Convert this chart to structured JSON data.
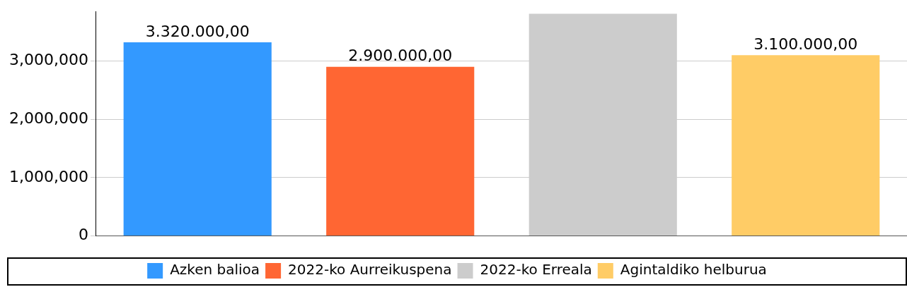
{
  "chart_data": {
    "type": "bar",
    "categories": [
      null
    ],
    "series": [
      {
        "name": "Azken balioa",
        "color": "#3399ff",
        "values": [
          3320000
        ],
        "value_labels": [
          "3.320.000,00"
        ]
      },
      {
        "name": "2022-ko Aurreikuspena",
        "color": "#ff6633",
        "values": [
          2900000
        ],
        "value_labels": [
          "2.900.000,00"
        ]
      },
      {
        "name": "2022-ko Erreala",
        "color": "#cccccc",
        "values": [
          3810000
        ],
        "value_labels": [
          null
        ]
      },
      {
        "name": "Agintaldiko helburua",
        "color": "#ffcc66",
        "values": [
          3100000
        ],
        "value_labels": [
          "3.100.000,00"
        ]
      }
    ],
    "ylim": [
      0,
      3850000
    ],
    "yticks": [
      {
        "value": 0,
        "label": "0"
      },
      {
        "value": 1000000,
        "label": "1,000,000"
      },
      {
        "value": 2000000,
        "label": "2,000,000"
      },
      {
        "value": 3000000,
        "label": "3,000,000"
      }
    ],
    "grid": "y",
    "legend": "bottom"
  }
}
